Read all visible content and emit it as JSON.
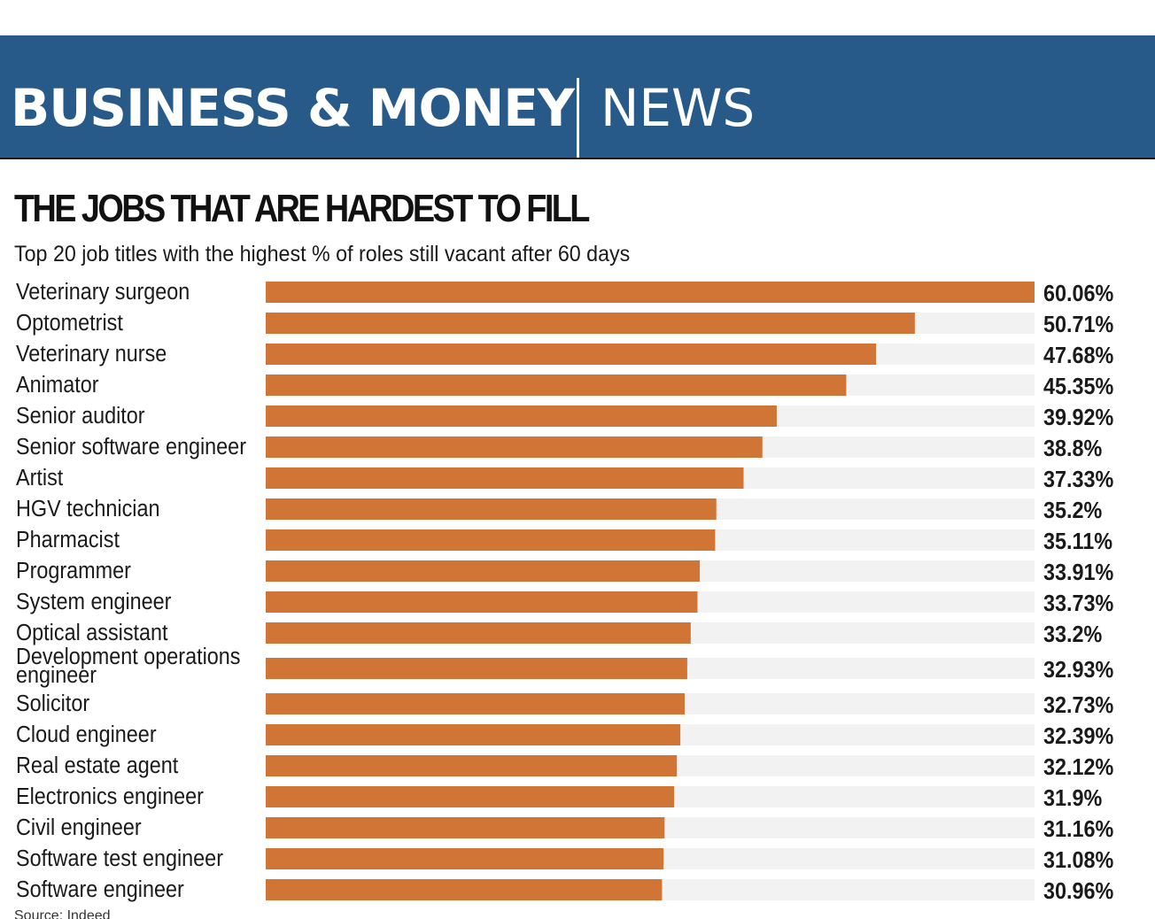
{
  "header": {
    "section": "BUSINESS & MONEY",
    "subsection": "NEWS"
  },
  "colors": {
    "header_band": "#275a88",
    "bar": "#d07536",
    "track": "#f2f2f2"
  },
  "chart_data": {
    "type": "bar",
    "orientation": "horizontal",
    "title": "THE JOBS THAT ARE HARDEST TO FILL",
    "subtitle": "Top 20 job titles with the highest % of roles still vacant after 60 days",
    "xlabel": "",
    "ylabel": "",
    "xlim": [
      0,
      60.06
    ],
    "grid": false,
    "legend": "none",
    "categories": [
      "Veterinary surgeon",
      "Optometrist",
      "Veterinary nurse",
      "Animator",
      "Senior auditor",
      "Senior software engineer",
      "Artist",
      "HGV technician",
      "Pharmacist",
      "Programmer",
      "System engineer",
      "Optical assistant",
      "Development operations engineer",
      "Solicitor",
      "Cloud engineer",
      "Real estate agent",
      "Electronics engineer",
      "Civil engineer",
      "Software test engineer",
      "Software engineer"
    ],
    "values": [
      60.06,
      50.71,
      47.68,
      45.35,
      39.92,
      38.8,
      37.33,
      35.2,
      35.11,
      33.91,
      33.73,
      33.2,
      32.93,
      32.73,
      32.39,
      32.12,
      31.9,
      31.16,
      31.08,
      30.96
    ],
    "value_labels": [
      "60.06%",
      "50.71%",
      "47.68%",
      "45.35%",
      "39.92%",
      "38.8%",
      "37.33%",
      "35.2%",
      "35.11%",
      "33.91%",
      "33.73%",
      "33.2%",
      "32.93%",
      "32.73%",
      "32.39%",
      "32.12%",
      "31.9%",
      "31.16%",
      "31.08%",
      "30.96%"
    ],
    "source": "Source: Indeed"
  }
}
